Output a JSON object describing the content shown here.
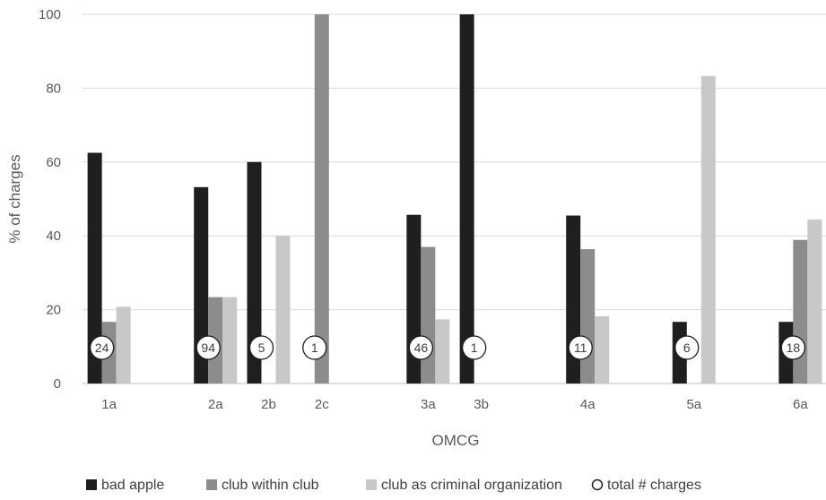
{
  "chart_data": {
    "type": "bar",
    "xlabel": "OMCG",
    "ylabel": "% of charges",
    "ylim": [
      0,
      100
    ],
    "yticks": [
      0,
      20,
      40,
      60,
      80,
      100
    ],
    "grid": true,
    "legend_position": "bottom",
    "categories": [
      "1a",
      "",
      "2a",
      "2b",
      "2c",
      "",
      "3a",
      "3b",
      "",
      "4a",
      "",
      "5a",
      "",
      "6a"
    ],
    "series": [
      {
        "name": "bad apple",
        "color": "#1f1f1f",
        "values": [
          62.5,
          null,
          53.2,
          60,
          0,
          null,
          45.7,
          100,
          null,
          45.5,
          null,
          16.7,
          null,
          16.7
        ]
      },
      {
        "name": "club within club",
        "color": "#8c8c8c",
        "values": [
          16.7,
          null,
          23.4,
          0,
          100,
          null,
          37,
          0,
          null,
          36.4,
          null,
          0,
          null,
          38.9
        ]
      },
      {
        "name": "club as criminal organization",
        "color": "#c8c8c8",
        "values": [
          20.8,
          null,
          23.4,
          40,
          0,
          null,
          17.4,
          0,
          null,
          18.2,
          null,
          83.3,
          null,
          44.4
        ]
      }
    ],
    "total_charges_label": "total # charges",
    "total_charges": [
      24,
      null,
      94,
      5,
      1,
      null,
      46,
      1,
      null,
      11,
      null,
      6,
      null,
      18
    ]
  }
}
